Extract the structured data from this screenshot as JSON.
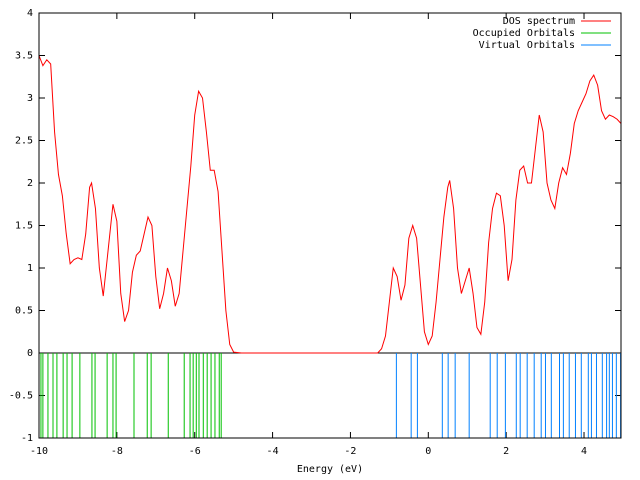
{
  "chart_data": {
    "type": "line",
    "x_label": "Energy (eV)",
    "xlim": [
      -10,
      4.95
    ],
    "xticks": [
      -10,
      -8,
      -6,
      -4,
      -2,
      0,
      2,
      4
    ],
    "ylim": [
      -1,
      4
    ],
    "yticks": [
      -1,
      -0.5,
      0,
      0.5,
      1,
      1.5,
      2,
      2.5,
      3,
      3.5,
      4
    ],
    "legend": "top-right",
    "series": [
      {
        "name": "DOS spectrum",
        "color": "#ff0000",
        "style": "line",
        "x": [
          -10,
          -9.9,
          -9.8,
          -9.7,
          -9.6,
          -9.5,
          -9.4,
          -9.3,
          -9.2,
          -9.1,
          -9.0,
          -8.9,
          -8.8,
          -8.7,
          -8.65,
          -8.55,
          -8.45,
          -8.35,
          -8.25,
          -8.1,
          -8.0,
          -7.9,
          -7.8,
          -7.7,
          -7.6,
          -7.5,
          -7.4,
          -7.3,
          -7.2,
          -7.1,
          -7.0,
          -6.9,
          -6.8,
          -6.7,
          -6.6,
          -6.5,
          -6.4,
          -6.3,
          -6.1,
          -6.0,
          -5.9,
          -5.8,
          -5.7,
          -5.6,
          -5.5,
          -5.4,
          -5.3,
          -5.2,
          -5.1,
          -5.0,
          -4.8,
          -2,
          -1.3,
          -1.2,
          -1.1,
          -1.0,
          -0.9,
          -0.8,
          -0.7,
          -0.6,
          -0.5,
          -0.4,
          -0.3,
          -0.2,
          -0.1,
          0,
          0.1,
          0.2,
          0.3,
          0.4,
          0.5,
          0.55,
          0.65,
          0.75,
          0.85,
          0.95,
          1.05,
          1.15,
          1.25,
          1.35,
          1.45,
          1.55,
          1.65,
          1.75,
          1.85,
          1.95,
          2.05,
          2.15,
          2.25,
          2.35,
          2.45,
          2.55,
          2.65,
          2.75,
          2.85,
          2.95,
          3.05,
          3.15,
          3.25,
          3.35,
          3.45,
          3.55,
          3.65,
          3.75,
          3.85,
          3.95,
          4.05,
          4.15,
          4.25,
          4.35,
          4.45,
          4.55,
          4.65,
          4.75,
          4.85,
          4.95
        ],
        "values": [
          3.5,
          3.38,
          3.45,
          3.4,
          2.6,
          2.1,
          1.85,
          1.4,
          1.05,
          1.1,
          1.12,
          1.1,
          1.4,
          1.95,
          2.0,
          1.7,
          1.0,
          0.67,
          1.1,
          1.75,
          1.55,
          0.7,
          0.37,
          0.5,
          0.95,
          1.15,
          1.2,
          1.4,
          1.6,
          1.5,
          0.9,
          0.52,
          0.7,
          1.0,
          0.85,
          0.55,
          0.7,
          1.2,
          2.2,
          2.8,
          3.08,
          3.0,
          2.6,
          2.15,
          2.15,
          1.9,
          1.2,
          0.5,
          0.1,
          0.01,
          0,
          0,
          0,
          0.05,
          0.2,
          0.6,
          1.0,
          0.9,
          0.62,
          0.8,
          1.35,
          1.5,
          1.35,
          0.8,
          0.25,
          0.1,
          0.2,
          0.6,
          1.1,
          1.6,
          1.95,
          2.03,
          1.7,
          1.0,
          0.7,
          0.85,
          1.0,
          0.7,
          0.3,
          0.22,
          0.6,
          1.3,
          1.7,
          1.88,
          1.85,
          1.5,
          0.85,
          1.1,
          1.8,
          2.15,
          2.2,
          2.0,
          2.0,
          2.4,
          2.8,
          2.6,
          2.0,
          1.8,
          1.7,
          2.0,
          2.18,
          2.1,
          2.35,
          2.7,
          2.85,
          2.95,
          3.05,
          3.2,
          3.27,
          3.15,
          2.85,
          2.75,
          2.8,
          2.78,
          2.75,
          2.7
        ]
      },
      {
        "name": "Occupied Orbitals",
        "color": "#00c000",
        "style": "impulse",
        "x": [
          -9.95,
          -9.9,
          -9.77,
          -9.64,
          -9.54,
          -9.38,
          -9.28,
          -9.15,
          -8.95,
          -8.64,
          -8.56,
          -8.25,
          -8.1,
          -8.02,
          -7.56,
          -7.22,
          -7.12,
          -6.68,
          -6.27,
          -6.12,
          -6.04,
          -5.96,
          -5.89,
          -5.78,
          -5.68,
          -5.58,
          -5.48,
          -5.37,
          -5.32
        ]
      },
      {
        "name": "Virtual Orbitals",
        "color": "#0080ff",
        "style": "impulse",
        "x": [
          -0.82,
          -0.44,
          -0.28,
          0.36,
          0.51,
          0.69,
          1.05,
          1.59,
          1.77,
          1.98,
          2.26,
          2.36,
          2.54,
          2.72,
          2.9,
          3.01,
          3.16,
          3.37,
          3.47,
          3.62,
          3.78,
          3.93,
          4.11,
          4.19,
          4.32,
          4.47,
          4.58,
          4.65,
          4.73,
          4.83,
          4.94
        ]
      }
    ]
  }
}
